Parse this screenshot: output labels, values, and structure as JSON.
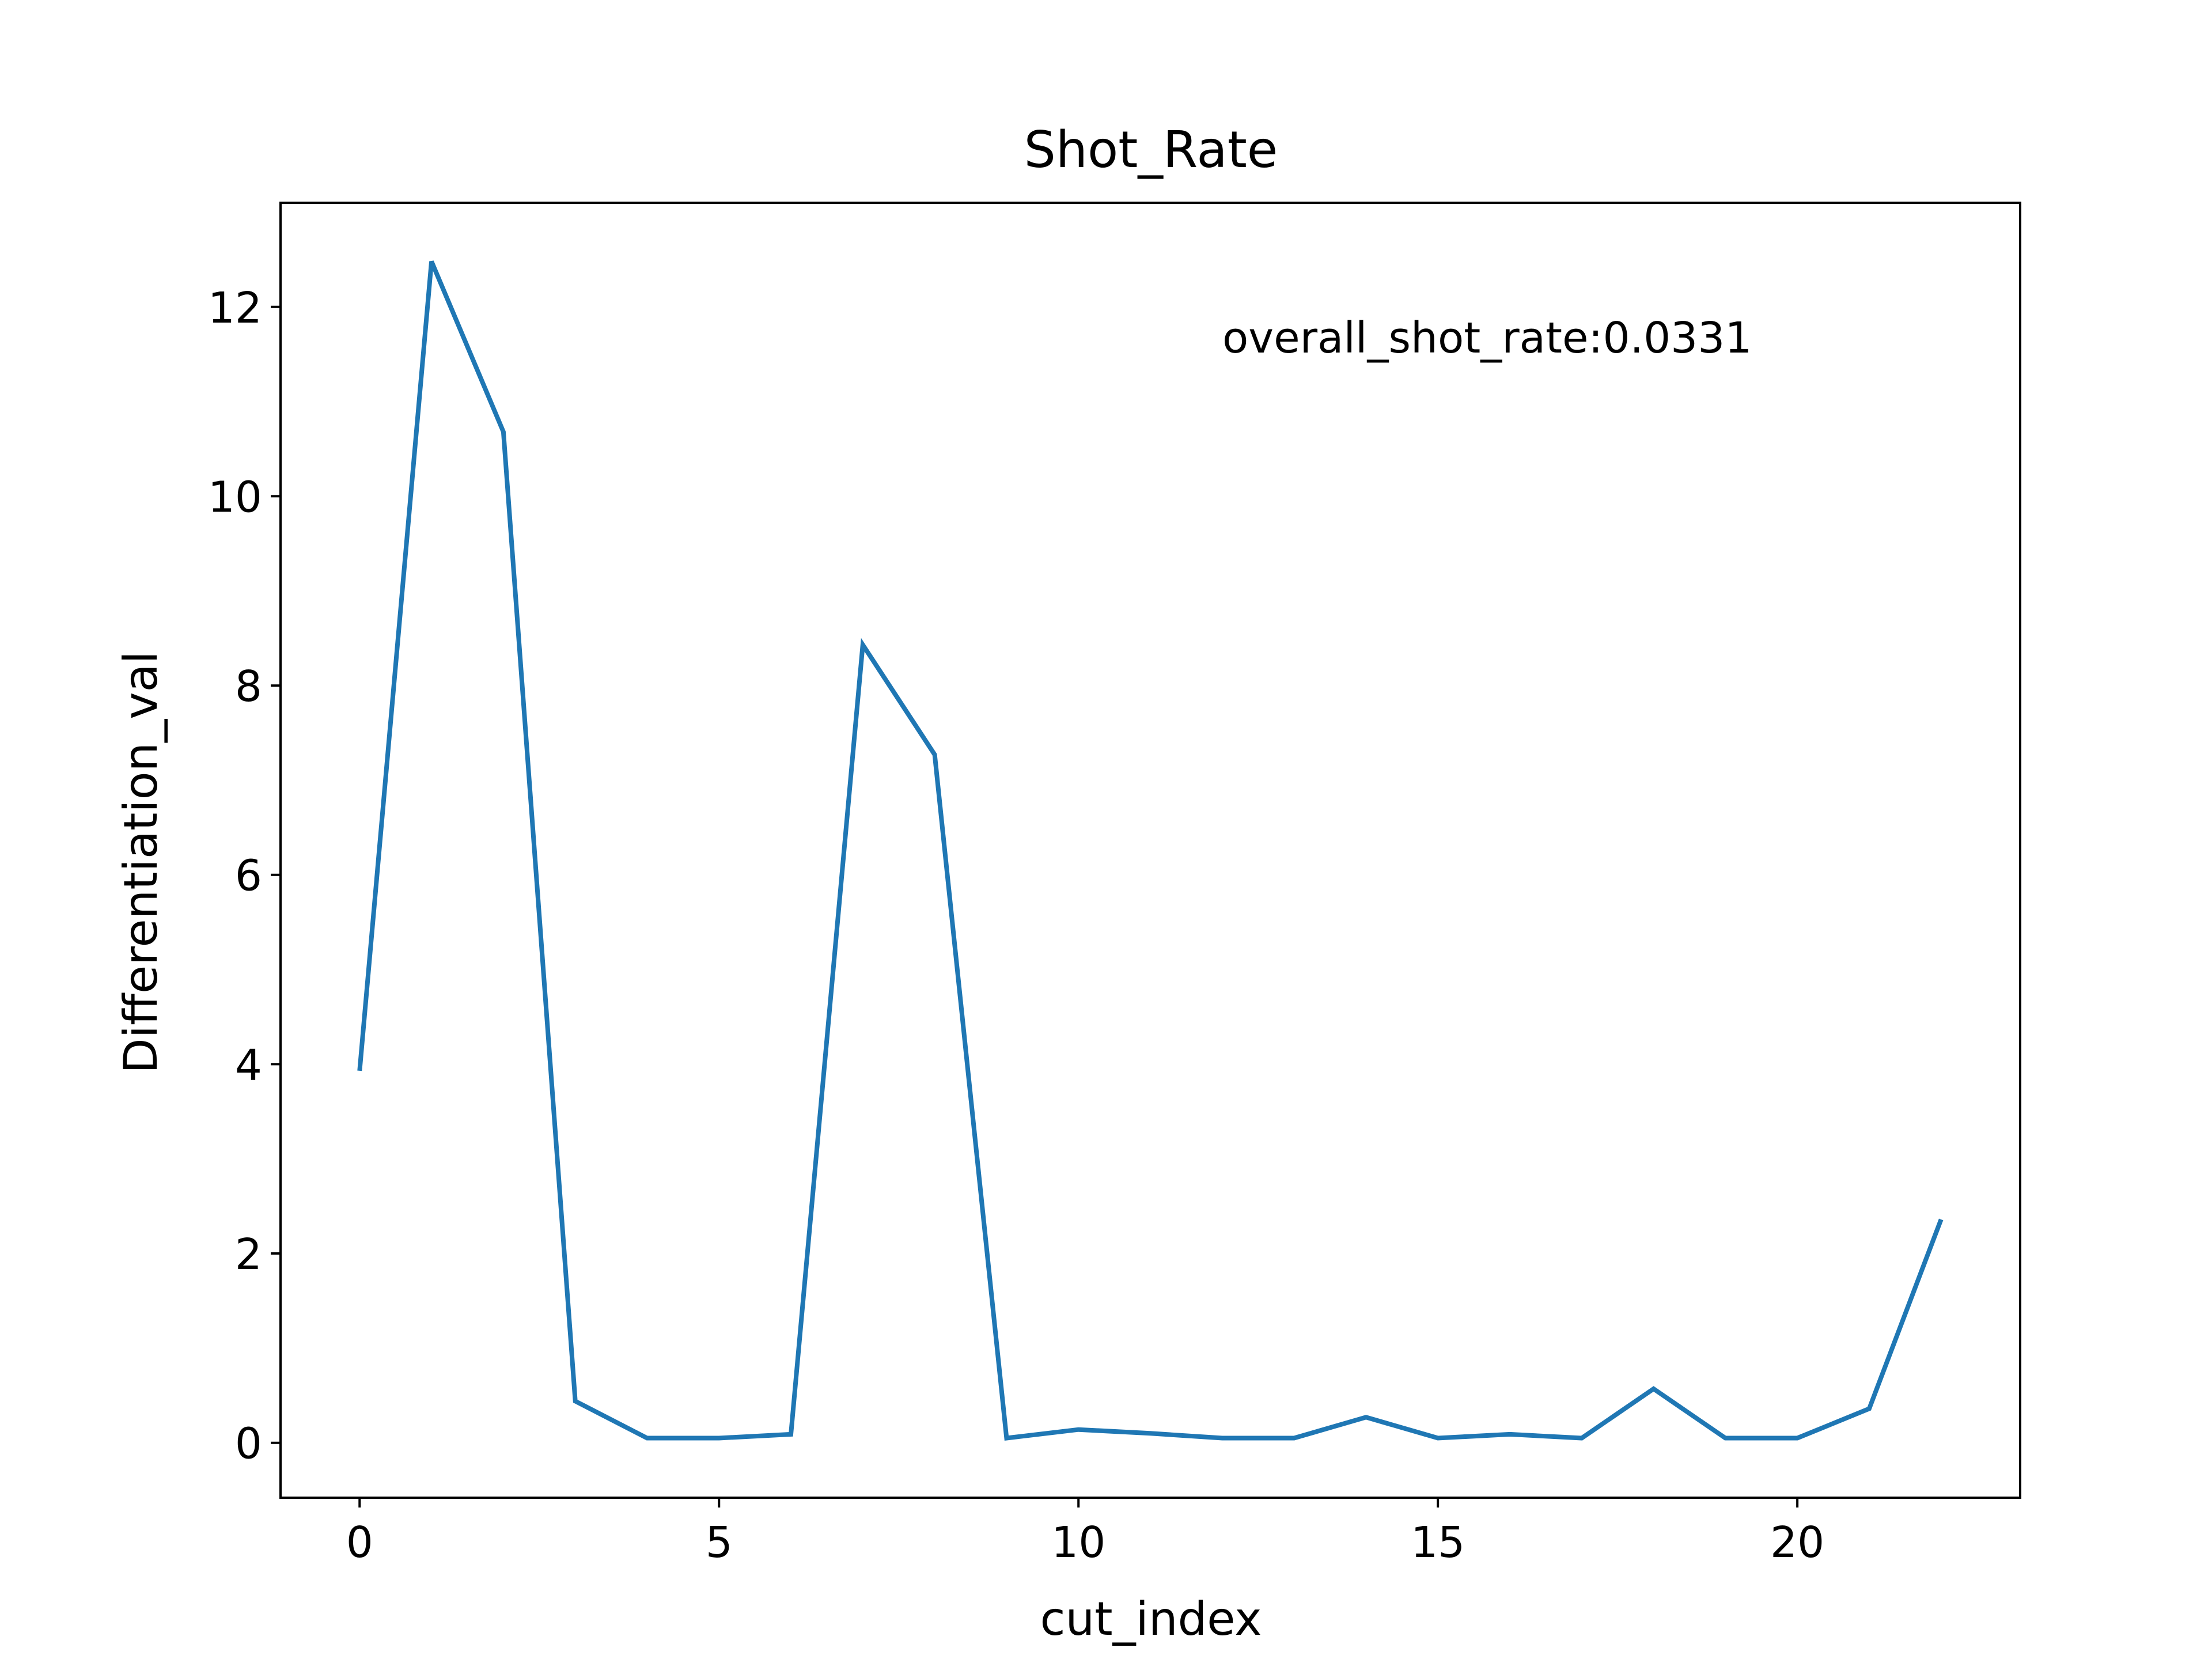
{
  "chart_data": {
    "type": "line",
    "title": "Shot_Rate",
    "xlabel": "cut_index",
    "ylabel": "Differentiation_val",
    "annotation": "overall_shot_rate:0.0331",
    "xlim": [
      -1.1,
      23.1
    ],
    "ylim": [
      -0.58,
      13.1
    ],
    "xticks": [
      0,
      5,
      10,
      15,
      20
    ],
    "yticks": [
      0,
      2,
      4,
      6,
      8,
      10,
      12
    ],
    "grid": false,
    "legend": false,
    "line_color": "#1f77b4",
    "x": [
      0,
      1,
      2,
      3,
      4,
      5,
      6,
      7,
      8,
      9,
      10,
      11,
      12,
      13,
      14,
      15,
      16,
      17,
      18,
      19,
      20,
      21,
      22
    ],
    "y": [
      3.93,
      12.48,
      10.68,
      0.44,
      0.05,
      0.05,
      0.09,
      8.43,
      7.27,
      0.05,
      0.14,
      0.1,
      0.05,
      0.05,
      0.27,
      0.05,
      0.09,
      0.05,
      0.57,
      0.05,
      0.05,
      0.36,
      2.36
    ]
  }
}
